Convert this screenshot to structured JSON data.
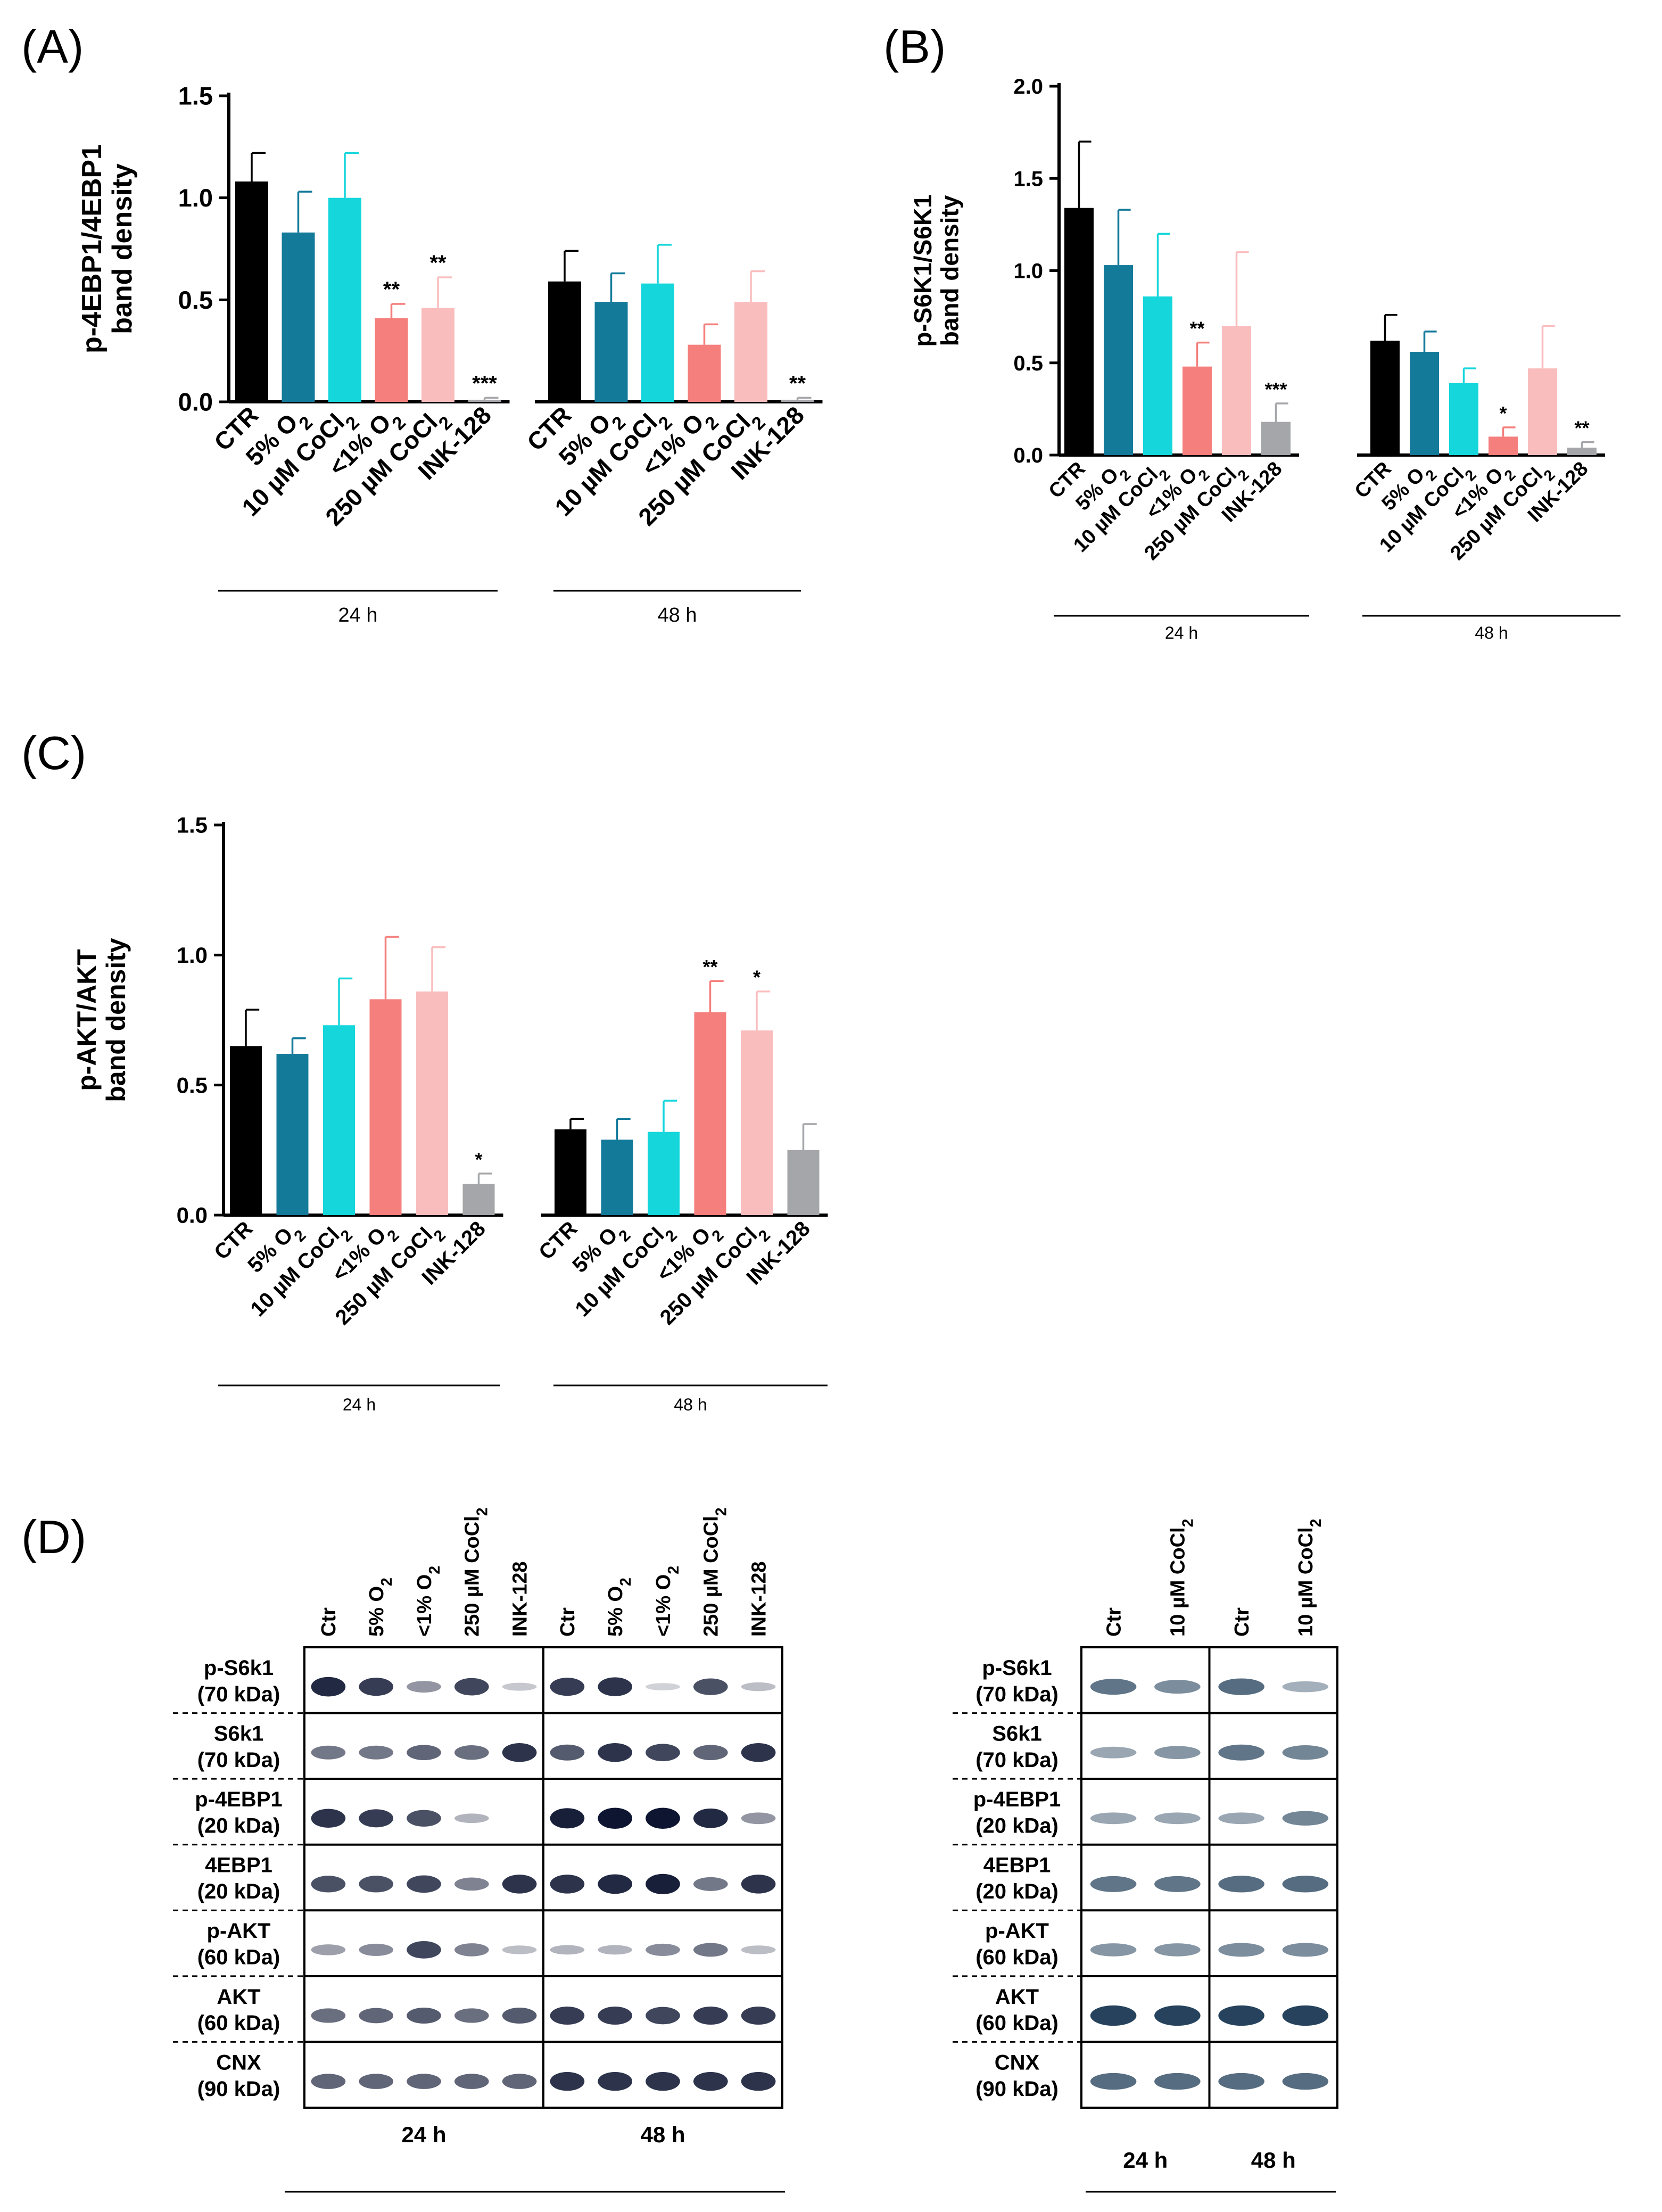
{
  "figure": {
    "panel_labels": {
      "A": "(A)",
      "B": "(B)",
      "C": "(C)",
      "D": "(D)"
    }
  },
  "conditions": [
    "CTR",
    "5% O2",
    "10 µM CoCl2",
    "<1% O2",
    "250 µM CoCl2",
    "INK-128"
  ],
  "colors": {
    "CTR": "#000000",
    "5% O2": "#137a9a",
    "10 µM CoCl2": "#14d6db",
    "<1% O2": "#f47f7c",
    "250 µM CoCl2": "#fabdbd",
    "INK-128": "#a5a6a9"
  },
  "chart_data": [
    {
      "panel": "(A)",
      "type": "bar",
      "ylabel": [
        "p-4EBP1/4EBP1",
        "band density"
      ],
      "ylim": [
        0,
        1.5
      ],
      "yticks": [
        "0.0",
        "0.5",
        "1.0",
        "1.5"
      ],
      "groups": [
        "24 h",
        "48 h"
      ],
      "categories": [
        "CTR",
        "5% O2",
        "10 µM CoCl2",
        "<1% O2",
        "250 µM CoCl2",
        "INK-128"
      ],
      "series": [
        {
          "name": "24 h",
          "values": [
            1.08,
            0.83,
            1.0,
            0.41,
            0.46,
            0.01
          ],
          "errors": [
            0.14,
            0.2,
            0.22,
            0.07,
            0.15,
            0.01
          ],
          "sig": [
            "",
            "",
            "",
            "**",
            "**",
            "***"
          ]
        },
        {
          "name": "48 h",
          "values": [
            0.59,
            0.49,
            0.58,
            0.28,
            0.49,
            0.01
          ],
          "errors": [
            0.15,
            0.14,
            0.19,
            0.1,
            0.15,
            0.01
          ],
          "sig": [
            "",
            "",
            "",
            "",
            "",
            "**"
          ]
        }
      ]
    },
    {
      "panel": "(B)",
      "type": "bar",
      "ylabel": [
        "p-S6K1/S6K1",
        "band density"
      ],
      "ylim": [
        0,
        2.0
      ],
      "yticks": [
        "0.0",
        "0.5",
        "1.0",
        "1.5",
        "2.0"
      ],
      "groups": [
        "24 h",
        "48 h"
      ],
      "categories": [
        "CTR",
        "5% O2",
        "10 µM CoCl2",
        "<1% O2",
        "250 µM CoCl2",
        "INK-128"
      ],
      "series": [
        {
          "name": "24 h",
          "values": [
            1.34,
            1.03,
            0.86,
            0.48,
            0.7,
            0.18
          ],
          "errors": [
            0.36,
            0.3,
            0.34,
            0.13,
            0.4,
            0.1
          ],
          "sig": [
            "",
            "",
            "",
            "**",
            "",
            "***"
          ]
        },
        {
          "name": "48 h",
          "values": [
            0.62,
            0.56,
            0.39,
            0.1,
            0.47,
            0.04
          ],
          "errors": [
            0.14,
            0.11,
            0.08,
            0.05,
            0.23,
            0.03
          ],
          "sig": [
            "",
            "",
            "",
            "*",
            "",
            "**"
          ]
        }
      ]
    },
    {
      "panel": "(C)",
      "type": "bar",
      "ylabel": [
        "p-AKT/AKT",
        "band density"
      ],
      "ylim": [
        0,
        1.5
      ],
      "yticks": [
        "0.0",
        "0.5",
        "1.0",
        "1.5"
      ],
      "groups": [
        "24 h",
        "48 h"
      ],
      "categories": [
        "CTR",
        "5% O2",
        "10 µM CoCl2",
        "<1% O2",
        "250 µM CoCl2",
        "INK-128"
      ],
      "series": [
        {
          "name": "24 h",
          "values": [
            0.65,
            0.62,
            0.73,
            0.83,
            0.86,
            0.12
          ],
          "errors": [
            0.14,
            0.06,
            0.18,
            0.24,
            0.17,
            0.04
          ],
          "sig": [
            "",
            "",
            "",
            "",
            "",
            "*"
          ]
        },
        {
          "name": "48 h",
          "values": [
            0.33,
            0.29,
            0.32,
            0.78,
            0.71,
            0.25
          ],
          "errors": [
            0.04,
            0.08,
            0.12,
            0.12,
            0.15,
            0.1
          ],
          "sig": [
            "",
            "",
            "",
            "**",
            "*",
            ""
          ]
        }
      ]
    }
  ],
  "blot_left": {
    "lanes": [
      "Ctr",
      "5% O2",
      "<1% O2",
      "250 µM CoCl2",
      "INK-128",
      "Ctr",
      "5% O2",
      "<1% O2",
      "250 µM CoCl2",
      "INK-128"
    ],
    "groups": [
      "24 h",
      "48 h"
    ],
    "rows": [
      {
        "name": "p-S6k1",
        "kda": "(70 kDa)",
        "intensity": [
          0.9,
          0.8,
          0.35,
          0.75,
          0.1,
          0.8,
          0.85,
          0.05,
          0.7,
          0.15
        ]
      },
      {
        "name": "S6k1",
        "kda": "(70 kDa)",
        "intensity": [
          0.5,
          0.5,
          0.6,
          0.55,
          0.85,
          0.65,
          0.85,
          0.75,
          0.6,
          0.85
        ]
      },
      {
        "name": "p-4EBP1",
        "kda": "(20 kDa)",
        "intensity": [
          0.85,
          0.8,
          0.7,
          0.2,
          0.02,
          0.95,
          1.0,
          1.0,
          0.9,
          0.35
        ]
      },
      {
        "name": "4EBP1",
        "kda": "(20 kDa)",
        "intensity": [
          0.7,
          0.7,
          0.75,
          0.45,
          0.85,
          0.85,
          0.9,
          0.95,
          0.5,
          0.85
        ]
      },
      {
        "name": "p-AKT",
        "kda": "(60 kDa)",
        "intensity": [
          0.3,
          0.4,
          0.75,
          0.45,
          0.15,
          0.2,
          0.2,
          0.4,
          0.5,
          0.15
        ]
      },
      {
        "name": "AKT",
        "kda": "(60 kDa)",
        "intensity": [
          0.55,
          0.6,
          0.65,
          0.55,
          0.65,
          0.8,
          0.8,
          0.75,
          0.8,
          0.8
        ]
      },
      {
        "name": "CNX",
        "kda": "(90 kDa)",
        "intensity": [
          0.6,
          0.6,
          0.6,
          0.6,
          0.6,
          0.85,
          0.85,
          0.85,
          0.85,
          0.85
        ]
      }
    ]
  },
  "blot_right": {
    "lanes": [
      "Ctr",
      "10 µM CoCl2",
      "Ctr",
      "10 µM CoCl2"
    ],
    "groups": [
      "24 h",
      "48 h"
    ],
    "rows": [
      {
        "name": "p-S6k1",
        "kda": "(70 kDa)",
        "intensity": [
          0.65,
          0.5,
          0.7,
          0.3
        ]
      },
      {
        "name": "S6k1",
        "kda": "(70 kDa)",
        "intensity": [
          0.35,
          0.45,
          0.65,
          0.55
        ]
      },
      {
        "name": "p-4EBP1",
        "kda": "(20 kDa)",
        "intensity": [
          0.35,
          0.35,
          0.35,
          0.55
        ]
      },
      {
        "name": "4EBP1",
        "kda": "(20 kDa)",
        "intensity": [
          0.65,
          0.65,
          0.7,
          0.7
        ]
      },
      {
        "name": "p-AKT",
        "kda": "(60 kDa)",
        "intensity": [
          0.45,
          0.45,
          0.5,
          0.5
        ]
      },
      {
        "name": "AKT",
        "kda": "(60 kDa)",
        "intensity": [
          0.95,
          0.95,
          0.95,
          0.95
        ]
      },
      {
        "name": "CNX",
        "kda": "(90 kDa)",
        "intensity": [
          0.7,
          0.7,
          0.7,
          0.7
        ]
      }
    ]
  }
}
